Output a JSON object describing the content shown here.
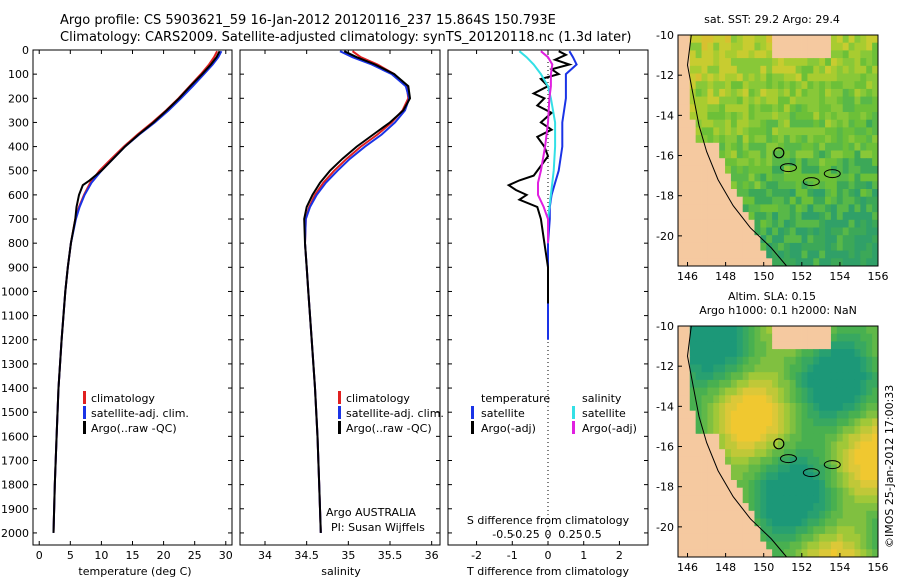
{
  "header": {
    "line1": "Argo profile: CS 5903621_59 16-Jan-2012 20120116_237 15.864S 150.793E",
    "line2": "Climatology: CARS2009. Satellite-adjusted climatology: synTS_20120118.nc (1.3d later)"
  },
  "colors": {
    "climatology": "#e02020",
    "satellite": "#1a33e6",
    "argo": "#000000",
    "salinity_satellite": "#33e0e6",
    "salinity_argo": "#e020e0",
    "land": "#f5c9a0"
  },
  "depth_axis": {
    "ylim": [
      0,
      2050
    ],
    "ticks": [
      0,
      100,
      200,
      300,
      400,
      500,
      600,
      700,
      800,
      900,
      1000,
      1100,
      1200,
      1300,
      1400,
      1500,
      1600,
      1700,
      1800,
      1900,
      2000
    ],
    "tick_labels": [
      "0",
      "100",
      "200",
      "300",
      "400",
      "500",
      "600",
      "700",
      "800",
      "900",
      "1000",
      "1100",
      "1200",
      "1300",
      "1400",
      "1500",
      "1600",
      "1700",
      "1800",
      "1900",
      "2000"
    ]
  },
  "chart_data": [
    {
      "type": "line",
      "id": "temperature",
      "xlabel": "temperature (deg C)",
      "xlim": [
        -1,
        31
      ],
      "xticks": [
        0,
        5,
        10,
        15,
        20,
        25,
        30
      ],
      "xtick_labels": [
        "0",
        "5",
        "10",
        "15",
        "20",
        "25",
        "30"
      ],
      "legend": [
        "climatology",
        "satellite-adj. clim.",
        "Argo(..raw -QC)"
      ],
      "series": [
        {
          "name": "climatology",
          "depth": [
            5,
            30,
            60,
            100,
            150,
            200,
            250,
            300,
            350,
            400,
            450,
            500,
            550,
            600,
            650,
            700,
            800,
            900,
            1000,
            1200,
            1400,
            1600,
            1800,
            2000
          ],
          "values": [
            28.6,
            28.1,
            27.3,
            26.0,
            24.2,
            22.4,
            20.4,
            18.2,
            15.8,
            13.6,
            11.6,
            9.7,
            8.2,
            7.2,
            6.4,
            5.8,
            5.1,
            4.6,
            4.2,
            3.6,
            3.1,
            2.8,
            2.5,
            2.3
          ]
        },
        {
          "name": "satellite-adj. clim.",
          "depth": [
            5,
            30,
            60,
            100,
            150,
            200,
            250,
            300,
            350,
            400,
            450,
            500,
            550,
            600,
            650,
            700,
            800,
            900,
            1000,
            1200,
            1400,
            1600,
            1800,
            2000
          ],
          "values": [
            29.3,
            28.8,
            27.9,
            26.5,
            24.7,
            22.8,
            20.8,
            18.6,
            16.1,
            13.8,
            11.9,
            10.0,
            8.4,
            7.3,
            6.5,
            5.9,
            5.1,
            4.6,
            4.2,
            3.6,
            3.1,
            2.8,
            2.5,
            2.3
          ]
        },
        {
          "name": "Argo(..raw -QC)",
          "depth": [
            5,
            30,
            60,
            100,
            150,
            200,
            250,
            300,
            350,
            400,
            450,
            500,
            540,
            560,
            600,
            650,
            700,
            800,
            900,
            1000,
            1200,
            1400,
            1600,
            1800,
            2000
          ],
          "values": [
            29.0,
            28.5,
            27.6,
            26.2,
            24.3,
            22.5,
            20.5,
            18.4,
            16.0,
            13.8,
            11.9,
            10.0,
            8.1,
            7.0,
            6.4,
            6.0,
            5.8,
            5.1,
            4.6,
            4.2,
            3.6,
            3.1,
            2.8,
            2.5,
            2.3
          ]
        }
      ]
    },
    {
      "type": "line",
      "id": "salinity",
      "xlabel": "salinity",
      "xlim": [
        33.7,
        36.1
      ],
      "xticks": [
        34,
        34.5,
        35,
        35.5,
        36
      ],
      "xtick_labels": [
        "34",
        "34.5",
        "35",
        "35.5",
        "36"
      ],
      "legend": [
        "climatology",
        "satellite-adj. clim.",
        "Argo(..raw -QC)"
      ],
      "annotation_line1": "Argo AUSTRALIA",
      "annotation_line2": "PI: Susan Wijffels",
      "series": [
        {
          "name": "climatology",
          "depth": [
            5,
            30,
            60,
            100,
            150,
            200,
            250,
            300,
            350,
            400,
            450,
            500,
            550,
            600,
            650,
            700,
            800,
            900,
            1000,
            1200,
            1400,
            1600,
            1800,
            2000
          ],
          "values": [
            35.05,
            35.15,
            35.35,
            35.55,
            35.7,
            35.72,
            35.65,
            35.52,
            35.35,
            35.15,
            34.98,
            34.83,
            34.7,
            34.6,
            34.53,
            34.49,
            34.48,
            34.5,
            34.52,
            34.56,
            34.6,
            34.63,
            34.65,
            34.67
          ]
        },
        {
          "name": "satellite-adj. clim.",
          "depth": [
            5,
            30,
            60,
            100,
            150,
            200,
            250,
            300,
            350,
            400,
            450,
            500,
            550,
            600,
            650,
            700,
            800,
            900,
            1000,
            1200,
            1400,
            1600,
            1800,
            2000
          ],
          "values": [
            34.9,
            35.05,
            35.28,
            35.52,
            35.69,
            35.73,
            35.68,
            35.56,
            35.4,
            35.2,
            35.02,
            34.87,
            34.73,
            34.62,
            34.54,
            34.49,
            34.48,
            34.5,
            34.52,
            34.56,
            34.6,
            34.63,
            34.65,
            34.67
          ]
        },
        {
          "name": "Argo(..raw -QC)",
          "depth": [
            5,
            30,
            60,
            100,
            150,
            200,
            250,
            300,
            350,
            400,
            450,
            500,
            550,
            600,
            650,
            700,
            800,
            900,
            1000,
            1200,
            1400,
            1600,
            1800,
            2000
          ],
          "values": [
            34.95,
            35.1,
            35.32,
            35.55,
            35.72,
            35.74,
            35.66,
            35.5,
            35.3,
            35.1,
            34.93,
            34.78,
            34.66,
            34.57,
            34.5,
            34.47,
            34.48,
            34.5,
            34.52,
            34.56,
            34.6,
            34.63,
            34.65,
            34.67
          ]
        }
      ]
    },
    {
      "type": "line",
      "id": "difference",
      "xlabel": "T difference from climatology",
      "xlabel_top": "S difference from climatology",
      "xlim": [
        -2.8,
        2.8
      ],
      "xticks": [
        -2,
        -1,
        0,
        1,
        2
      ],
      "xtick_labels": [
        "-2",
        "-1",
        "0",
        "1",
        "2"
      ],
      "top_ticks": [
        -0.5,
        -0.25,
        0,
        0.25,
        0.5
      ],
      "top_tick_labels": [
        "-0.5",
        "-0.25",
        "0",
        "0.25",
        "0.5"
      ],
      "legend_left_title": "temperature",
      "legend_right_title": "salinity",
      "legend_left": [
        "satellite",
        "Argo(-adj)"
      ],
      "legend_right": [
        "satellite",
        "Argo(-adj)"
      ],
      "series": [
        {
          "name": "T satellite",
          "depth": [
            5,
            30,
            60,
            100,
            150,
            200,
            300,
            400,
            500,
            550,
            600,
            650,
            700,
            800,
            1000,
            1200
          ],
          "values": [
            0.6,
            0.7,
            0.8,
            0.5,
            0.5,
            0.5,
            0.4,
            0.4,
            0.3,
            0.2,
            0.1,
            0.05,
            0.05,
            0.0,
            0.0,
            0.0
          ]
        },
        {
          "name": "T Argo(-adj)",
          "depth": [
            5,
            20,
            40,
            60,
            80,
            100,
            120,
            150,
            180,
            200,
            230,
            260,
            300,
            330,
            360,
            400,
            440,
            480,
            520,
            540,
            560,
            580,
            600,
            620,
            650,
            700,
            800,
            900,
            1000,
            1050
          ],
          "values": [
            0.3,
            0.5,
            0.2,
            0.6,
            0.1,
            0.3,
            -0.2,
            0.0,
            -0.4,
            -0.1,
            -0.3,
            0.1,
            -0.2,
            0.1,
            -0.3,
            -0.1,
            0.0,
            -0.2,
            -0.4,
            -0.8,
            -1.1,
            -0.9,
            -0.6,
            -0.8,
            -0.3,
            -0.2,
            -0.1,
            0.0,
            0.0,
            0.0
          ]
        },
        {
          "name": "S satellite",
          "depth": [
            5,
            30,
            60,
            100,
            150,
            200,
            300,
            400,
            500,
            600,
            700,
            800
          ],
          "values": [
            -0.2,
            -0.15,
            -0.1,
            -0.05,
            0.0,
            0.02,
            0.05,
            0.05,
            0.04,
            0.02,
            0.0,
            0.0
          ]
        },
        {
          "name": "S Argo(-adj)",
          "depth": [
            5,
            30,
            60,
            100,
            150,
            200,
            300,
            400,
            500,
            550,
            600,
            650,
            700,
            800
          ],
          "values": [
            -0.05,
            0.0,
            0.03,
            0.02,
            0.02,
            0.01,
            0.0,
            -0.02,
            -0.05,
            -0.07,
            -0.07,
            -0.03,
            0.0,
            0.0
          ]
        }
      ]
    },
    {
      "type": "heatmap",
      "id": "sst-map",
      "title": "sat. SST: 29.2 Argo: 29.4",
      "xlim": [
        145.5,
        156
      ],
      "ylim": [
        -21.5,
        -10
      ],
      "xticks": [
        146,
        148,
        150,
        152,
        154,
        156
      ],
      "xtick_labels": [
        "146",
        "148",
        "150",
        "152",
        "154",
        "156"
      ],
      "yticks": [
        -10,
        -12,
        -14,
        -16,
        -18,
        -20
      ],
      "ytick_labels": [
        "-10",
        "-12",
        "-14",
        "-16",
        "-18",
        "-20"
      ],
      "argo_position": [
        150.793,
        -15.864
      ]
    },
    {
      "type": "heatmap",
      "id": "sla-map",
      "title": "Altim. SLA: 0.15",
      "subtitle": "Argo h1000: 0.1 h2000: NaN",
      "xlim": [
        145.5,
        156
      ],
      "ylim": [
        -21.5,
        -10
      ],
      "xticks": [
        146,
        148,
        150,
        152,
        154,
        156
      ],
      "xtick_labels": [
        "146",
        "148",
        "150",
        "152",
        "154",
        "156"
      ],
      "yticks": [
        -10,
        -12,
        -14,
        -16,
        -18,
        -20
      ],
      "ytick_labels": [
        "-10",
        "-12",
        "-14",
        "-16",
        "-18",
        "-20"
      ],
      "argo_position": [
        150.793,
        -15.864
      ]
    }
  ],
  "footer_stamp": "©IMOS 25-Jan-2012 17:00:33"
}
